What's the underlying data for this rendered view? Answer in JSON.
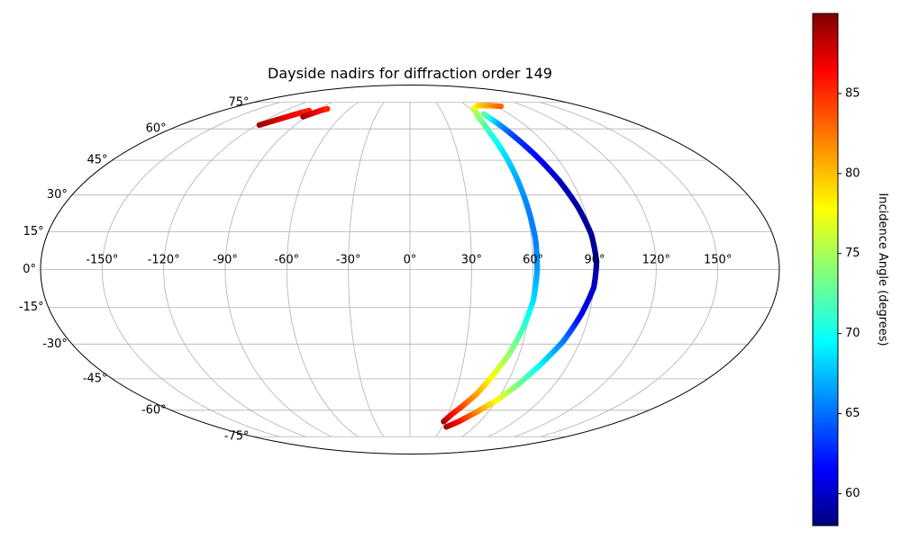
{
  "chart_data": {
    "type": "scatter",
    "projection": "mollweide",
    "title": "Dayside nadirs for diffraction order 149",
    "grid": true,
    "lon_ticks": [
      -150,
      -120,
      -90,
      -60,
      -30,
      0,
      30,
      60,
      90,
      120,
      150
    ],
    "lon_tick_labels": [
      "-150°",
      "-120°",
      "-90°",
      "-60°",
      "-30°",
      "0°",
      "30°",
      "60°",
      "90°",
      "120°",
      "150°"
    ],
    "lat_ticks": [
      75,
      60,
      45,
      30,
      15,
      0,
      -15,
      -30,
      -45,
      -60,
      -75
    ],
    "lat_tick_labels": [
      "75°",
      "60°",
      "45°",
      "30°",
      "15°",
      "0°",
      "-15°",
      "-30°",
      "-45°",
      "-60°",
      "-75°"
    ],
    "colorbar": {
      "label": "Incidence Angle (degrees)",
      "range": [
        58,
        90
      ],
      "ticks": [
        60,
        65,
        70,
        75,
        80,
        85
      ],
      "tick_labels": [
        "60",
        "65",
        "70",
        "75",
        "80",
        "85"
      ],
      "colormap": "jet"
    },
    "series": [
      {
        "points": [
          {
            "lon": 29,
            "lat": -66,
            "c": 89
          },
          {
            "lon": 33,
            "lat": -62,
            "c": 86
          },
          {
            "lon": 38,
            "lat": -58,
            "c": 84
          },
          {
            "lon": 44,
            "lat": -52,
            "c": 81
          },
          {
            "lon": 49,
            "lat": -44,
            "c": 78
          },
          {
            "lon": 54,
            "lat": -35,
            "c": 75
          },
          {
            "lon": 58,
            "lat": -24,
            "c": 72
          },
          {
            "lon": 61,
            "lat": -12,
            "c": 69
          },
          {
            "lon": 62,
            "lat": 0,
            "c": 67
          },
          {
            "lon": 62,
            "lat": 12,
            "c": 66
          },
          {
            "lon": 61,
            "lat": 24,
            "c": 66
          },
          {
            "lon": 60,
            "lat": 36,
            "c": 67
          },
          {
            "lon": 59,
            "lat": 48,
            "c": 69
          },
          {
            "lon": 58,
            "lat": 58,
            "c": 71
          },
          {
            "lon": 59,
            "lat": 66,
            "c": 74
          },
          {
            "lon": 63,
            "lat": 71,
            "c": 76
          },
          {
            "lon": 72,
            "lat": 73,
            "c": 79
          },
          {
            "lon": 84,
            "lat": 73,
            "c": 81
          },
          {
            "lon": 95,
            "lat": 72.5,
            "c": 83
          }
        ]
      },
      {
        "points": [
          {
            "lon": 34,
            "lat": -69,
            "c": 89
          },
          {
            "lon": 42,
            "lat": -66,
            "c": 86
          },
          {
            "lon": 51,
            "lat": -61,
            "c": 82
          },
          {
            "lon": 60,
            "lat": -55,
            "c": 78
          },
          {
            "lon": 67,
            "lat": -48,
            "c": 74
          },
          {
            "lon": 74,
            "lat": -39,
            "c": 70
          },
          {
            "lon": 81,
            "lat": -29,
            "c": 66
          },
          {
            "lon": 86,
            "lat": -18,
            "c": 62
          },
          {
            "lon": 90,
            "lat": -7,
            "c": 60
          },
          {
            "lon": 91,
            "lat": 3,
            "c": 59
          },
          {
            "lon": 90,
            "lat": 14,
            "c": 58.5
          },
          {
            "lon": 87,
            "lat": 25,
            "c": 59
          },
          {
            "lon": 83,
            "lat": 36,
            "c": 60
          },
          {
            "lon": 78,
            "lat": 47,
            "c": 62
          },
          {
            "lon": 73,
            "lat": 57,
            "c": 64
          },
          {
            "lon": 70,
            "lat": 63,
            "c": 67
          },
          {
            "lon": 68,
            "lat": 66,
            "c": 70
          },
          {
            "lon": 67,
            "lat": 68,
            "c": 73
          }
        ]
      },
      {
        "points": [
          {
            "lon": -118,
            "lat": 62,
            "c": 89
          },
          {
            "lon": -113,
            "lat": 64,
            "c": 88
          },
          {
            "lon": -108,
            "lat": 66,
            "c": 87
          },
          {
            "lon": -103,
            "lat": 68,
            "c": 86
          },
          {
            "lon": -97,
            "lat": 70,
            "c": 85
          }
        ]
      },
      {
        "points": [
          {
            "lon": -93,
            "lat": 66.5,
            "c": 89
          },
          {
            "lon": -90,
            "lat": 68,
            "c": 87.5
          },
          {
            "lon": -86,
            "lat": 70,
            "c": 86
          },
          {
            "lon": -82,
            "lat": 71,
            "c": 85
          }
        ]
      }
    ]
  }
}
